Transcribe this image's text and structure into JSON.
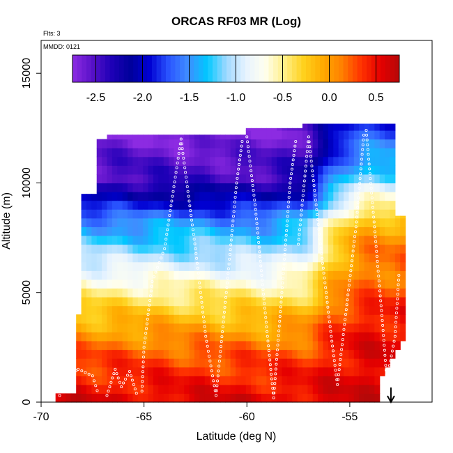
{
  "chart_data": {
    "type": "heatmap",
    "title": "ORCAS RF03 MR (Log)",
    "flights_label": "Flts: 3",
    "date_label": "MMDD: 0121",
    "xlabel": "Latitude (deg N)",
    "ylabel": "Altitude (m)",
    "xlim": [
      -70,
      -51
    ],
    "ylim": [
      0,
      16500
    ],
    "xticks": [
      -70,
      -65,
      -60,
      -55
    ],
    "yticks": [
      0,
      5000,
      10000,
      15000
    ],
    "colorbar": {
      "range": [
        -2.75,
        0.75
      ],
      "ticks": [
        -2.5,
        -2.0,
        -1.5,
        -1.0,
        -0.5,
        0.0,
        0.5
      ],
      "tick_labels": [
        "-2.5",
        "-2.0",
        "-1.5",
        "-1.0",
        "-0.5",
        "0.0",
        "0.5"
      ],
      "colors": [
        "#8c2be2",
        "#5a12c9",
        "#1f00b8",
        "#00009b",
        "#0000d2",
        "#2a55ff",
        "#3f8dff",
        "#00c8ff",
        "#9fd8ff",
        "#e6f3ff",
        "#fffff0",
        "#ffef8a",
        "#ffd21e",
        "#ffab00",
        "#ff8000",
        "#ff3300",
        "#e60000",
        "#b50808"
      ]
    },
    "grid_extent": {
      "lat_min": -69.3,
      "lat_max": -52.4,
      "lat_step": 0.25,
      "alt_min": 0,
      "alt_max": 12700,
      "alt_step": 400
    },
    "field_anchors": {
      "alt_m": [
        0,
        2000,
        4000,
        5000,
        6000,
        7000,
        8000,
        9000,
        10000,
        11000,
        12000,
        12700
      ],
      "west_value": [
        0.55,
        0.25,
        -0.25,
        -0.55,
        -0.9,
        -1.2,
        -1.5,
        -2.0,
        -2.45,
        -2.55,
        -2.7,
        -2.7
      ],
      "east_value": [
        0.6,
        0.55,
        0.45,
        0.2,
        0.2,
        0.1,
        -0.1,
        -0.6,
        -1.1,
        -1.4,
        -1.7,
        -1.8
      ],
      "transition_lat": -56.3
    },
    "flight_tracks": [
      {
        "name": "profile-1",
        "points": [
          [
            -69.1,
            300
          ],
          [
            -68.6,
            1200
          ],
          [
            -68.2,
            1500
          ],
          [
            -67.5,
            1200
          ],
          [
            -67.2,
            300
          ]
        ]
      },
      {
        "name": "profile-2",
        "points": [
          [
            -66.8,
            300
          ],
          [
            -66.4,
            1500
          ],
          [
            -66.1,
            700
          ],
          [
            -65.7,
            1400
          ],
          [
            -65.3,
            200
          ]
        ]
      },
      {
        "name": "profile-3",
        "points": [
          [
            -65.1,
            500
          ],
          [
            -65.0,
            2500
          ],
          [
            -64.6,
            5500
          ],
          [
            -64.0,
            7000
          ],
          [
            -63.2,
            12000
          ],
          [
            -62.5,
            7000
          ],
          [
            -62.0,
            3000
          ],
          [
            -61.5,
            300
          ],
          [
            -61.0,
            5000
          ],
          [
            -60.5,
            10000
          ],
          [
            -60.2,
            12100
          ]
        ]
      },
      {
        "name": "profile-4",
        "points": [
          [
            -60.0,
            12100
          ],
          [
            -59.6,
            9000
          ],
          [
            -59.3,
            6000
          ],
          [
            -59.0,
            3000
          ],
          [
            -58.7,
            200
          ],
          [
            -58.3,
            5000
          ],
          [
            -57.9,
            10000
          ],
          [
            -57.6,
            12100
          ]
        ]
      },
      {
        "name": "profile-5",
        "points": [
          [
            -57.5,
            7200
          ],
          [
            -57.0,
            12100
          ],
          [
            -56.4,
            7000
          ],
          [
            -55.9,
            3000
          ],
          [
            -55.6,
            800
          ],
          [
            -55.2,
            4000
          ],
          [
            -54.7,
            8000
          ],
          [
            -54.3,
            12400
          ]
        ]
      },
      {
        "name": "profile-6",
        "points": [
          [
            -54.2,
            12400
          ],
          [
            -53.8,
            8000
          ],
          [
            -53.4,
            3500
          ],
          [
            -53.2,
            1000
          ],
          [
            -52.8,
            3000
          ],
          [
            -52.6,
            6000
          ]
        ]
      }
    ],
    "arrow_lat": -53.0
  }
}
